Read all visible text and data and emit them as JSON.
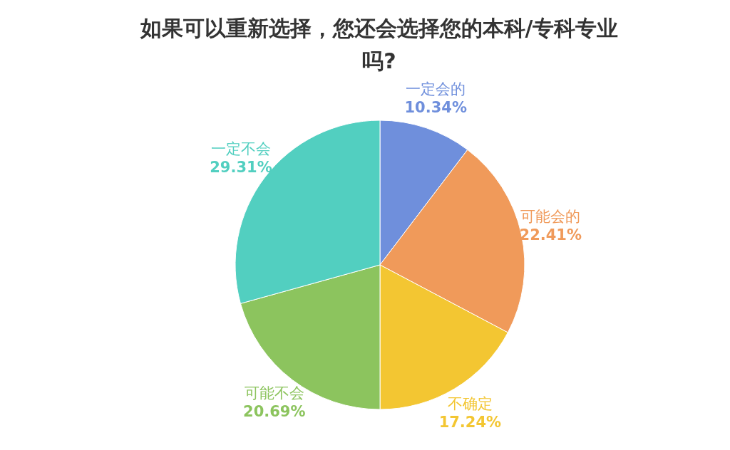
{
  "chart_data": {
    "type": "pie",
    "title": "如果可以重新选择，您还会选择您的本科/专科专业吗?",
    "categories": [
      "一定会的",
      "可能会的",
      "不确定",
      "可能不会",
      "一定不会"
    ],
    "values": [
      10.34,
      22.41,
      17.24,
      20.69,
      29.31
    ],
    "value_labels": [
      "10.34%",
      "22.41%",
      "17.24%",
      "20.69%",
      "29.31%"
    ],
    "colors": [
      "#6f8fdc",
      "#f09a5a",
      "#f3c632",
      "#8cc45e",
      "#52cfc0"
    ]
  }
}
